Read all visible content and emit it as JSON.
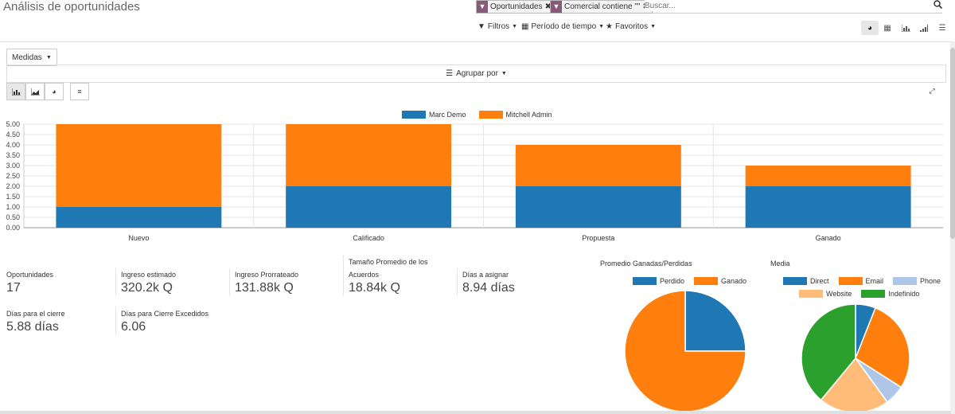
{
  "header": {
    "title": "Análisis de oportunidades"
  },
  "search": {
    "facets": [
      {
        "label": "Oportunidades",
        "icon": "filter-icon"
      },
      {
        "label": "Comercial contiene \"\"",
        "icon": "filter-icon"
      }
    ],
    "placeholder": "Buscar..."
  },
  "controls": {
    "filters": "Filtros",
    "period": "Período de tiempo",
    "favorites": "Favoritos"
  },
  "views": [
    "dashboard-view",
    "pivot-view",
    "graph-view",
    "cohort-view",
    "list-view"
  ],
  "toolbar": {
    "measures": "Medidas",
    "group_by": "Agrupar por"
  },
  "colors": {
    "marc": "#1f77b4",
    "mitchell": "#ff7f0e",
    "phone": "#aec7e8",
    "website": "#ffbb78",
    "indefinido": "#2ca02c",
    "accent": "#875a7b"
  },
  "chart_data": [
    {
      "type": "bar",
      "stacked": true,
      "categories": [
        "Nuevo",
        "Calificado",
        "Propuesta",
        "Ganado"
      ],
      "series": [
        {
          "name": "Marc Demo",
          "values": [
            1,
            2,
            2,
            2
          ]
        },
        {
          "name": "Mitchell Admin",
          "values": [
            4,
            3,
            2,
            1
          ]
        }
      ],
      "yticks": [
        "0.00",
        "0.50",
        "1.00",
        "1.50",
        "2.00",
        "2.50",
        "3.00",
        "3.50",
        "4.00",
        "4.50",
        "5.00"
      ],
      "ylim": [
        0,
        5
      ],
      "legend": "top-center",
      "grid": true
    },
    {
      "type": "pie",
      "title": "Promedio Ganadas/Perdidas",
      "labels": [
        "Perdido",
        "Ganado"
      ],
      "values": [
        25,
        75
      ]
    },
    {
      "type": "pie",
      "title": "Media",
      "labels": [
        "Direct",
        "Email",
        "Phone",
        "Website",
        "Indefinido"
      ],
      "values": [
        6,
        28,
        6,
        21,
        39
      ]
    }
  ],
  "kpis": [
    {
      "label": "Oportunidades",
      "value": "17"
    },
    {
      "label": "Ingreso estimado",
      "value": "320.2k Q"
    },
    {
      "label": "Ingreso Prorrateado",
      "value": "131.88k Q"
    },
    {
      "label": "Tamaño Promedio de los Acuerdos",
      "value": "18.84k Q"
    },
    {
      "label": "Días a asignar",
      "value": "8.94 días"
    },
    {
      "label": "Días para el cierre",
      "value": "5.88 días"
    },
    {
      "label": "Días para Cierre Excedidos",
      "value": "6.06"
    }
  ]
}
